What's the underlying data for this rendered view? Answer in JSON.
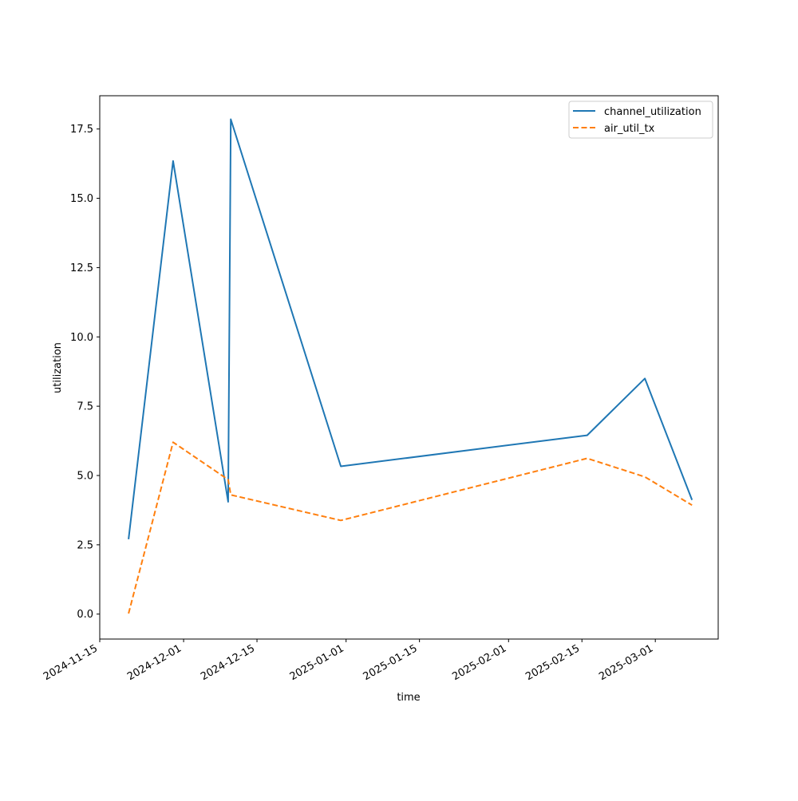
{
  "chart_data": {
    "type": "line",
    "title": "",
    "xlabel": "time",
    "ylabel": "utilization",
    "x_type": "date",
    "xlim": [
      "2024-11-15",
      "2025-03-13"
    ],
    "ylim": [
      -0.9,
      18.7
    ],
    "x_ticks": [
      "2024-11-15",
      "2024-12-01",
      "2024-12-15",
      "2025-01-01",
      "2025-01-15",
      "2025-02-01",
      "2025-02-15",
      "2025-03-01"
    ],
    "y_ticks": [
      0.0,
      2.5,
      5.0,
      7.5,
      10.0,
      12.5,
      15.0,
      17.5
    ],
    "grid": false,
    "legend_position": "upper right",
    "series": [
      {
        "name": "channel_utilization",
        "color": "#1f77b4",
        "style": "solid",
        "points": [
          {
            "x": "2024-11-20T12:00",
            "y": 2.7
          },
          {
            "x": "2024-11-29T00:00",
            "y": 16.35
          },
          {
            "x": "2024-12-09T12:00",
            "y": 4.05
          },
          {
            "x": "2024-12-10T00:00",
            "y": 17.85
          },
          {
            "x": "2024-12-31T00:00",
            "y": 5.33
          },
          {
            "x": "2025-02-16T00:00",
            "y": 6.45
          },
          {
            "x": "2025-02-27T00:00",
            "y": 8.5
          },
          {
            "x": "2025-03-08T00:00",
            "y": 4.12
          }
        ]
      },
      {
        "name": "air_util_tx",
        "color": "#ff7f0e",
        "style": "dashed",
        "points": [
          {
            "x": "2024-11-20T12:00",
            "y": 0.02
          },
          {
            "x": "2024-11-29T00:00",
            "y": 6.2
          },
          {
            "x": "2024-12-09T12:00",
            "y": 4.85
          },
          {
            "x": "2024-12-10T00:00",
            "y": 4.3
          },
          {
            "x": "2024-12-31T00:00",
            "y": 3.38
          },
          {
            "x": "2025-02-16T00:00",
            "y": 5.62
          },
          {
            "x": "2025-02-27T00:00",
            "y": 4.95
          },
          {
            "x": "2025-03-08T00:00",
            "y": 3.93
          }
        ]
      }
    ]
  }
}
